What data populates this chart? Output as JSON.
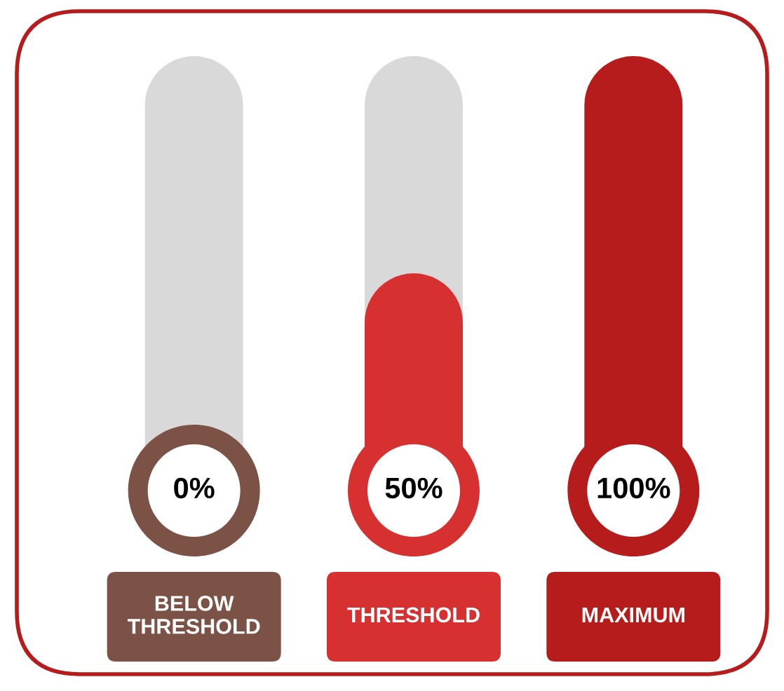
{
  "chart_data": {
    "type": "bar",
    "categories": [
      "BELOW THRESHOLD",
      "THRESHOLD",
      "MAXIMUM"
    ],
    "series": [
      {
        "values": [
          100,
          100,
          null
        ],
        "color": "#d9d9d9"
      },
      {
        "values": [
          0,
          50,
          100
        ],
        "colors": [
          "#7b5245",
          "#d63031",
          "#b71c1c"
        ],
        "value_labels": [
          "0%",
          "50%",
          "100%"
        ]
      }
    ]
  }
}
